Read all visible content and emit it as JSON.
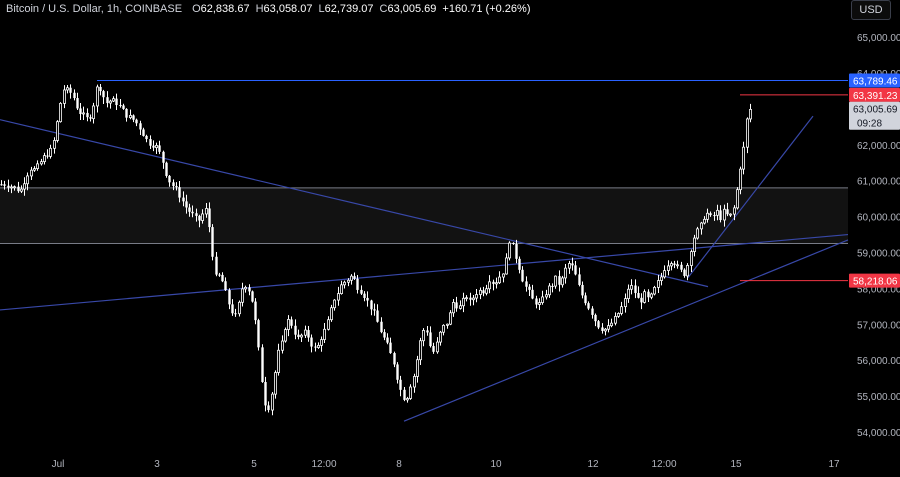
{
  "header": {
    "symbol": "Bitcoin / U.S. Dollar, 1h, COINBASE",
    "open_label": "O",
    "open": "62,838.67",
    "high_label": "H",
    "high": "63,058.07",
    "low_label": "L",
    "low": "62,739.07",
    "close_label": "C",
    "close": "63,005.69",
    "change": "+160.71 (+0.26%)",
    "currency_button": "USD"
  },
  "chart_data": {
    "type": "candlestick",
    "y_axis": {
      "range": [
        53600,
        65600
      ],
      "ticks": [
        54000,
        55000,
        56000,
        57000,
        58000,
        59000,
        60000,
        61000,
        62000,
        63000,
        64000,
        65000
      ],
      "tick_labels": [
        "54,000.00",
        "55,000.00",
        "56,000.00",
        "57,000.00",
        "58,000.00",
        "59,000.00",
        "60,000.00",
        "61,000.00",
        "62,000.00",
        "63,000.00",
        "64,000.00",
        "65,000.00"
      ]
    },
    "x_axis": {
      "tick_labels": [
        "Jul",
        "3",
        "5",
        "12:00",
        "8",
        "10",
        "12",
        "12:00",
        "15",
        "17"
      ]
    },
    "price_labels": [
      {
        "value": 63789.46,
        "text": "63,789.46",
        "color": "#2962ff"
      },
      {
        "value": 63391.23,
        "text": "63,391.23",
        "color": "#f23645"
      },
      {
        "value": 63005.69,
        "text": "63,005.69",
        "color": "#d1d4dc"
      },
      {
        "value": 58218.06,
        "text": "58,218.06",
        "color": "#f23645"
      }
    ],
    "countdown": "09:28",
    "zone": {
      "low": 59250,
      "high": 60800
    },
    "horizontal_levels": [
      63789.46,
      63391.23,
      58218.06
    ],
    "colors": {
      "candle": "#ffffff",
      "trendline": "#3848a8",
      "zone_line": "#787b86",
      "resistance": "#2962ff",
      "red_level": "#f23645"
    },
    "path": [
      [
        0,
        60900
      ],
      [
        5,
        60900
      ],
      [
        10,
        60850
      ],
      [
        15,
        60800
      ],
      [
        20,
        60700
      ],
      [
        25,
        61050
      ],
      [
        30,
        61350
      ],
      [
        35,
        61300
      ],
      [
        40,
        61500
      ],
      [
        45,
        61700
      ],
      [
        50,
        61800
      ],
      [
        55,
        62200
      ],
      [
        58,
        62800
      ],
      [
        62,
        63400
      ],
      [
        65,
        63650
      ],
      [
        68,
        63450
      ],
      [
        72,
        63450
      ],
      [
        76,
        63100
      ],
      [
        80,
        62900
      ],
      [
        84,
        62800
      ],
      [
        88,
        62700
      ],
      [
        92,
        62900
      ],
      [
        96,
        63550
      ],
      [
        99,
        63650
      ],
      [
        103,
        63350
      ],
      [
        107,
        63150
      ],
      [
        111,
        63250
      ],
      [
        115,
        63200
      ],
      [
        119,
        63100
      ],
      [
        123,
        62950
      ],
      [
        127,
        62800
      ],
      [
        131,
        62750
      ],
      [
        135,
        62650
      ],
      [
        139,
        62500
      ],
      [
        143,
        62300
      ],
      [
        147,
        62100
      ],
      [
        151,
        62000
      ],
      [
        155,
        62000
      ],
      [
        159,
        61800
      ],
      [
        163,
        61500
      ],
      [
        167,
        61100
      ],
      [
        171,
        60900
      ],
      [
        175,
        60800
      ],
      [
        179,
        60600
      ],
      [
        183,
        60400
      ],
      [
        187,
        60200
      ],
      [
        191,
        60100
      ],
      [
        195,
        59950
      ],
      [
        199,
        59900
      ],
      [
        203,
        60100
      ],
      [
        206,
        60200
      ],
      [
        209,
        59700
      ],
      [
        212,
        59000
      ],
      [
        215,
        58300
      ],
      [
        219,
        58350
      ],
      [
        223,
        58150
      ],
      [
        227,
        57700
      ],
      [
        231,
        57400
      ],
      [
        235,
        57200
      ],
      [
        239,
        57600
      ],
      [
        243,
        58150
      ],
      [
        247,
        58050
      ],
      [
        251,
        57800
      ],
      [
        255,
        57100
      ],
      [
        258,
        56400
      ],
      [
        261,
        55600
      ],
      [
        264,
        54900
      ],
      [
        267,
        54600
      ],
      [
        270,
        54800
      ],
      [
        274,
        55500
      ],
      [
        278,
        56200
      ],
      [
        282,
        56500
      ],
      [
        286,
        57100
      ],
      [
        290,
        57100
      ],
      [
        294,
        56800
      ],
      [
        298,
        56600
      ],
      [
        302,
        56700
      ],
      [
        306,
        56800
      ],
      [
        310,
        56500
      ],
      [
        314,
        56300
      ],
      [
        318,
        56400
      ],
      [
        322,
        56700
      ],
      [
        326,
        56900
      ],
      [
        330,
        57300
      ],
      [
        334,
        57700
      ],
      [
        338,
        57900
      ],
      [
        342,
        58150
      ],
      [
        346,
        58200
      ],
      [
        350,
        58350
      ],
      [
        354,
        58250
      ],
      [
        358,
        58000
      ],
      [
        362,
        57900
      ],
      [
        366,
        57700
      ],
      [
        370,
        57500
      ],
      [
        374,
        57300
      ],
      [
        378,
        57000
      ],
      [
        382,
        56700
      ],
      [
        386,
        56500
      ],
      [
        390,
        56200
      ],
      [
        394,
        55900
      ],
      [
        398,
        55400
      ],
      [
        402,
        55000
      ],
      [
        406,
        54900
      ],
      [
        410,
        55300
      ],
      [
        414,
        55600
      ],
      [
        418,
        56200
      ],
      [
        422,
        56800
      ],
      [
        426,
        56900
      ],
      [
        430,
        56400
      ],
      [
        434,
        56200
      ],
      [
        438,
        56600
      ],
      [
        442,
        56900
      ],
      [
        446,
        57000
      ],
      [
        450,
        57300
      ],
      [
        454,
        57700
      ],
      [
        458,
        57400
      ],
      [
        462,
        57600
      ],
      [
        466,
        57800
      ],
      [
        470,
        57600
      ],
      [
        474,
        57800
      ],
      [
        478,
        57950
      ],
      [
        482,
        57900
      ],
      [
        486,
        58050
      ],
      [
        490,
        58300
      ],
      [
        494,
        58100
      ],
      [
        498,
        58300
      ],
      [
        502,
        58400
      ],
      [
        506,
        58800
      ],
      [
        509,
        59350
      ],
      [
        512,
        59200
      ],
      [
        516,
        58850
      ],
      [
        520,
        58500
      ],
      [
        524,
        58100
      ],
      [
        528,
        57950
      ],
      [
        532,
        57700
      ],
      [
        536,
        57600
      ],
      [
        540,
        57550
      ],
      [
        544,
        57800
      ],
      [
        548,
        58000
      ],
      [
        552,
        58100
      ],
      [
        556,
        58300
      ],
      [
        560,
        58050
      ],
      [
        564,
        58450
      ],
      [
        568,
        58700
      ],
      [
        572,
        58600
      ],
      [
        576,
        58300
      ],
      [
        580,
        57900
      ],
      [
        584,
        57700
      ],
      [
        588,
        57500
      ],
      [
        592,
        57300
      ],
      [
        596,
        57050
      ],
      [
        600,
        56900
      ],
      [
        604,
        56850
      ],
      [
        608,
        56900
      ],
      [
        612,
        57050
      ],
      [
        616,
        57200
      ],
      [
        620,
        57400
      ],
      [
        624,
        57600
      ],
      [
        628,
        58000
      ],
      [
        632,
        58050
      ],
      [
        636,
        57800
      ],
      [
        640,
        57600
      ],
      [
        644,
        57850
      ],
      [
        648,
        57700
      ],
      [
        652,
        57800
      ],
      [
        656,
        58100
      ],
      [
        660,
        58250
      ],
      [
        664,
        58550
      ],
      [
        668,
        58700
      ],
      [
        672,
        58800
      ],
      [
        676,
        58650
      ],
      [
        680,
        58500
      ],
      [
        684,
        58400
      ],
      [
        688,
        58700
      ],
      [
        692,
        59300
      ],
      [
        696,
        59550
      ],
      [
        700,
        59700
      ],
      [
        704,
        60000
      ],
      [
        708,
        60100
      ],
      [
        712,
        59900
      ],
      [
        716,
        60200
      ],
      [
        720,
        59950
      ],
      [
        724,
        60150
      ],
      [
        728,
        60000
      ],
      [
        732,
        60050
      ],
      [
        736,
        60500
      ],
      [
        739,
        61300
      ],
      [
        742,
        61500
      ],
      [
        745,
        62300
      ],
      [
        748,
        62950
      ],
      [
        751,
        63000
      ]
    ]
  }
}
